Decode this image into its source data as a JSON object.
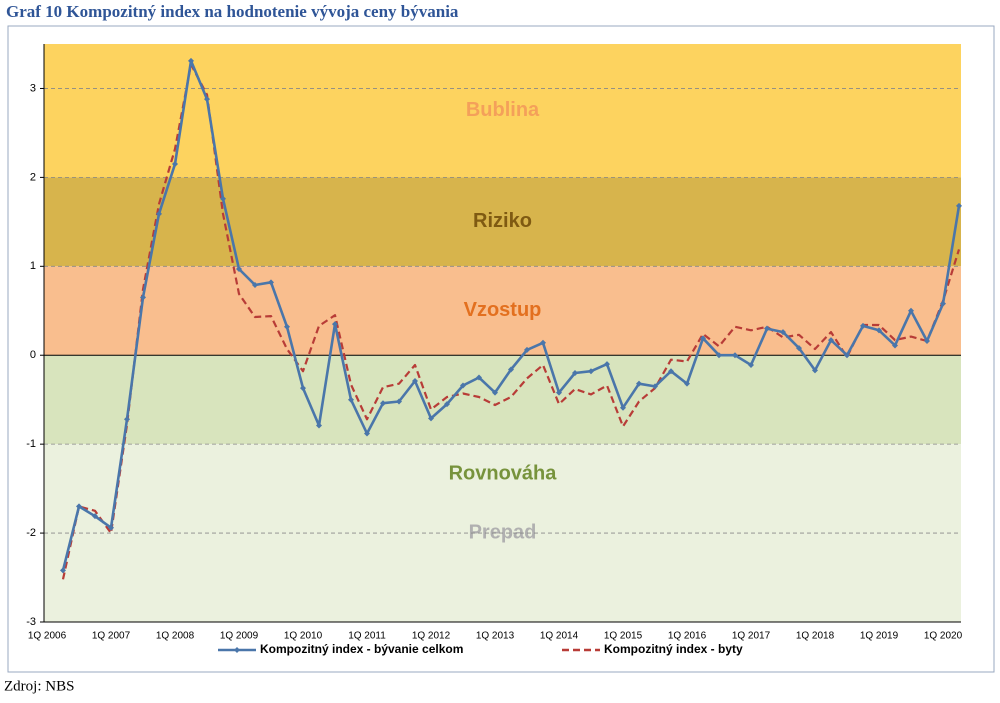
{
  "chart_data": {
    "type": "line",
    "title": "Graf 10 Kompozitný index na hodnotenie vývoja ceny bývania",
    "source": "Zdroj: NBS",
    "categories": [
      "1Q 2006",
      null,
      null,
      null,
      "1Q 2007",
      null,
      null,
      null,
      "1Q 2008",
      null,
      null,
      null,
      "1Q 2009",
      null,
      null,
      null,
      "1Q 2010",
      null,
      null,
      null,
      "1Q 2011",
      null,
      null,
      null,
      "1Q 2012",
      null,
      null,
      null,
      "1Q 2013",
      null,
      null,
      null,
      "1Q 2014",
      null,
      null,
      null,
      "1Q 2015",
      null,
      null,
      null,
      "1Q 2016",
      null,
      null,
      null,
      "1Q 2017",
      null,
      null,
      null,
      "1Q 2018",
      null,
      null,
      null,
      "1Q 2019",
      null,
      null,
      null,
      "1Q 2020",
      null
    ],
    "series": [
      {
        "name": "Kompozitný index - bývanie celkom",
        "color": "#4a76aa",
        "values": [
          null,
          -2.42,
          -1.7,
          -1.81,
          -1.94,
          -0.72,
          0.65,
          1.59,
          2.15,
          3.31,
          2.88,
          1.76,
          0.97,
          0.79,
          0.82,
          0.32,
          -0.37,
          -0.79,
          0.35,
          -0.5,
          -0.88,
          -0.54,
          -0.52,
          -0.29,
          -0.71,
          -0.55,
          -0.34,
          -0.25,
          -0.42,
          -0.16,
          0.06,
          0.14,
          -0.42,
          -0.2,
          -0.18,
          -0.1,
          -0.59,
          -0.32,
          -0.35,
          -0.18,
          -0.32,
          0.19,
          0.0,
          0.0,
          -0.11,
          0.3,
          0.26,
          0.08,
          -0.17,
          0.17,
          0.0,
          0.33,
          0.28,
          0.11,
          0.5,
          0.16,
          0.58,
          1.68
        ]
      },
      {
        "name": "Kompozitný index - byty",
        "color": "#b83c37",
        "values": [
          null,
          -2.52,
          -1.7,
          -1.75,
          -2.0,
          -0.78,
          0.74,
          1.7,
          2.32,
          3.27,
          2.93,
          1.59,
          0.69,
          0.43,
          0.44,
          0.07,
          -0.18,
          0.33,
          0.45,
          -0.33,
          -0.72,
          -0.36,
          -0.32,
          -0.11,
          -0.61,
          -0.47,
          -0.43,
          -0.47,
          -0.56,
          -0.47,
          -0.26,
          -0.11,
          -0.55,
          -0.38,
          -0.44,
          -0.34,
          -0.8,
          -0.52,
          -0.37,
          -0.05,
          -0.07,
          0.24,
          0.1,
          0.32,
          0.28,
          0.32,
          0.2,
          0.23,
          0.07,
          0.26,
          -0.02,
          0.34,
          0.34,
          0.17,
          0.21,
          0.16,
          0.61,
          1.19
        ]
      }
    ],
    "bands": [
      {
        "label": "Bublina",
        "from": 2,
        "to": 3.5,
        "color": "#fdd35f",
        "label_color": "#f4a05a"
      },
      {
        "label": "Riziko",
        "from": 1,
        "to": 2,
        "color": "#d7b44c",
        "label_color": "#7f5a12"
      },
      {
        "label": "Vzostup",
        "from": 0,
        "to": 1,
        "color": "#f9be8e",
        "label_color": "#e3701f"
      },
      {
        "label": "Rovnováha",
        "from": -1,
        "to": 0,
        "color": "#d8e4bd",
        "label_color": "#77933c"
      },
      {
        "label": "Prepad",
        "from": -3,
        "to": -1,
        "color": "#ebf1de",
        "label_color": "#b0b0b0"
      }
    ],
    "ylim": [
      -3,
      3.5
    ],
    "yticks": [
      -3,
      -2,
      -1,
      0,
      1,
      2,
      3
    ],
    "grid": true
  }
}
